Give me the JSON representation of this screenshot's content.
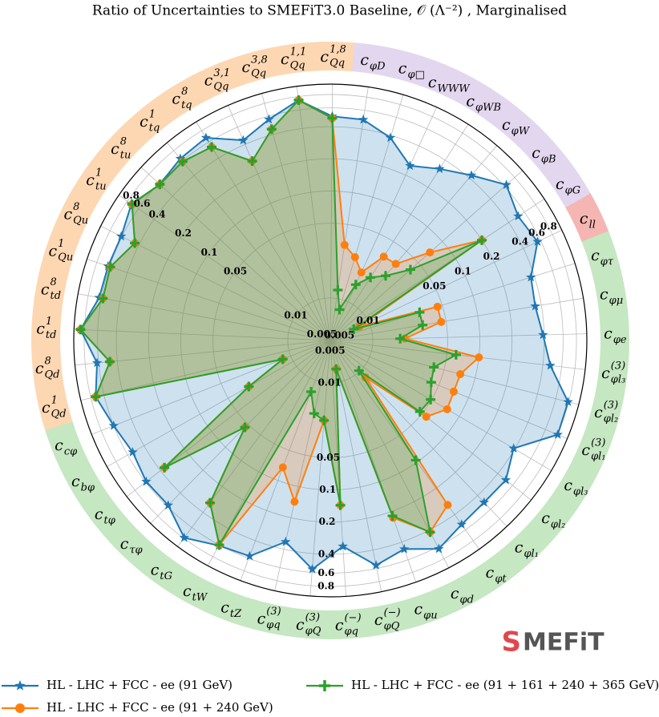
{
  "chart_data": {
    "type": "radar",
    "title": "Ratio of Uncertainties to SMEFiT3.0 Baseline, 𝒪 (Λ⁻²) , Marginalised",
    "rscale": "log",
    "rlim": [
      0.004,
      1
    ],
    "rticks": [
      0.005,
      0.01,
      0.05,
      0.1,
      0.2,
      0.4,
      0.6,
      0.8
    ],
    "grid": true,
    "categories": [
      {
        "base": "c",
        "sub": "φD"
      },
      {
        "base": "c",
        "sub": "φ□"
      },
      {
        "base": "c",
        "sub": "WWW"
      },
      {
        "base": "c",
        "sub": "φWB"
      },
      {
        "base": "c",
        "sub": "φW"
      },
      {
        "base": "c",
        "sub": "φB"
      },
      {
        "base": "c",
        "sub": "φG"
      },
      {
        "base": "c",
        "sub": "ll"
      },
      {
        "base": "c",
        "sub": "φτ"
      },
      {
        "base": "c",
        "sub": "φμ"
      },
      {
        "base": "c",
        "sub": "φe"
      },
      {
        "base": "c",
        "sub": "φl₃",
        "sup": "(3)"
      },
      {
        "base": "c",
        "sub": "φl₂",
        "sup": "(3)"
      },
      {
        "base": "c",
        "sub": "φl₁",
        "sup": "(3)"
      },
      {
        "base": "c",
        "sub": "φl₃"
      },
      {
        "base": "c",
        "sub": "φl₂"
      },
      {
        "base": "c",
        "sub": "φl₁"
      },
      {
        "base": "c",
        "sub": "φt"
      },
      {
        "base": "c",
        "sub": "φd"
      },
      {
        "base": "c",
        "sub": "φu"
      },
      {
        "base": "c",
        "sub": "φQ",
        "sup": "(−)"
      },
      {
        "base": "c",
        "sub": "φq",
        "sup": "(−)"
      },
      {
        "base": "c",
        "sub": "φQ",
        "sup": "(3)"
      },
      {
        "base": "c",
        "sub": "φq",
        "sup": "(3)"
      },
      {
        "base": "c",
        "sub": "tZ"
      },
      {
        "base": "c",
        "sub": "tW"
      },
      {
        "base": "c",
        "sub": "tG"
      },
      {
        "base": "c",
        "sub": "τφ"
      },
      {
        "base": "c",
        "sub": "tφ"
      },
      {
        "base": "c",
        "sub": "bφ"
      },
      {
        "base": "c",
        "sub": "cφ"
      },
      {
        "base": "c",
        "sub": "Qd",
        "sup": "1"
      },
      {
        "base": "c",
        "sub": "Qd",
        "sup": "8"
      },
      {
        "base": "c",
        "sub": "td",
        "sup": "1"
      },
      {
        "base": "c",
        "sub": "td",
        "sup": "8"
      },
      {
        "base": "c",
        "sub": "Qu",
        "sup": "1"
      },
      {
        "base": "c",
        "sub": "Qu",
        "sup": "8"
      },
      {
        "base": "c",
        "sub": "tu",
        "sup": "1"
      },
      {
        "base": "c",
        "sub": "tu",
        "sup": "8"
      },
      {
        "base": "c",
        "sub": "tq",
        "sup": "1"
      },
      {
        "base": "c",
        "sub": "tq",
        "sup": "8"
      },
      {
        "base": "c",
        "sub": "Qq",
        "sup": "3,1"
      },
      {
        "base": "c",
        "sub": "Qq",
        "sup": "3,8"
      },
      {
        "base": "c",
        "sub": "Qq",
        "sup": "1,1"
      },
      {
        "base": "c",
        "sub": "Qq",
        "sup": "1,8"
      }
    ],
    "category_colors": [
      "#e3d6ef",
      "#e3d6ef",
      "#e3d6ef",
      "#e3d6ef",
      "#e3d6ef",
      "#e3d6ef",
      "#e3d6ef",
      "#f5b5b3",
      "#c5e7c1",
      "#c5e7c1",
      "#c5e7c1",
      "#c5e7c1",
      "#c5e7c1",
      "#c5e7c1",
      "#c5e7c1",
      "#c5e7c1",
      "#c5e7c1",
      "#c5e7c1",
      "#c5e7c1",
      "#c5e7c1",
      "#c5e7c1",
      "#c5e7c1",
      "#c5e7c1",
      "#c5e7c1",
      "#c5e7c1",
      "#c5e7c1",
      "#c5e7c1",
      "#c5e7c1",
      "#c5e7c1",
      "#c5e7c1",
      "#c5e7c1",
      "#fdd7b2",
      "#fdd7b2",
      "#fdd7b2",
      "#fdd7b2",
      "#fdd7b2",
      "#fdd7b2",
      "#fdd7b2",
      "#fdd7b2",
      "#fdd7b2",
      "#fdd7b2",
      "#fdd7b2",
      "#fdd7b2",
      "#fdd7b2",
      "#fdd7b2"
    ],
    "series": [
      {
        "name": "HL - LHC + FCC - ee (91 GeV)",
        "color": "#1f77b4",
        "marker": "star",
        "values": [
          0.49,
          0.38,
          0.25,
          0.32,
          0.43,
          0.63,
          0.51,
          0.56,
          0.37,
          0.35,
          0.39,
          0.47,
          0.79,
          0.8,
          0.39,
          0.5,
          0.49,
          0.52,
          0.63,
          0.47,
          0.56,
          0.34,
          0.56,
          0.34,
          0.57,
          0.61,
          0.79,
          0.58,
          0.59,
          0.53,
          0.6,
          0.72,
          0.62,
          0.87,
          0.63,
          0.62,
          0.61,
          0.72,
          0.58,
          0.64,
          0.67,
          0.44,
          0.56,
          0.74,
          0.5
        ]
      },
      {
        "name": "HL - LHC + FCC - ee (91 + 240 GeV)",
        "color": "#ff7f0e",
        "marker": "circle",
        "values": [
          0.032,
          0.026,
          0.02,
          0.034,
          0.035,
          0.07,
          0.2,
          0.008,
          0.045,
          0.045,
          0.02,
          0.1,
          0.072,
          0.071,
          0.074,
          0.056,
          0.012,
          0.31,
          0.42,
          0.23,
          0.0075,
          0.14,
          0.0225,
          0.14,
          0.074,
          0.6,
          0.31,
          0.055,
          0.36,
          0.03,
          0.012,
          0.72,
          0.47,
          0.87,
          0.58,
          0.59,
          0.44,
          0.71,
          0.58,
          0.59,
          0.53,
          0.27,
          0.45,
          0.74,
          0.48
        ]
      },
      {
        "name": "HL - LHC + FCC - ee (91 + 161 + 240 + 365 GeV)",
        "color": "#2ca02c",
        "marker": "plus",
        "values": [
          0.012,
          0.008,
          0.015,
          0.02,
          0.025,
          0.04,
          0.2,
          0.007,
          0.03,
          0.03,
          0.018,
          0.061,
          0.04,
          0.042,
          0.049,
          0.047,
          0.0098,
          0.095,
          0.42,
          0.22,
          0.0075,
          0.14,
          0.0225,
          0.02,
          0.013,
          0.6,
          0.31,
          0.055,
          0.36,
          0.03,
          0.012,
          0.72,
          0.47,
          0.87,
          0.58,
          0.59,
          0.44,
          0.71,
          0.58,
          0.59,
          0.53,
          0.27,
          0.45,
          0.74,
          0.48
        ]
      }
    ],
    "logo_mark": "S",
    "logo": "MEFiT"
  }
}
